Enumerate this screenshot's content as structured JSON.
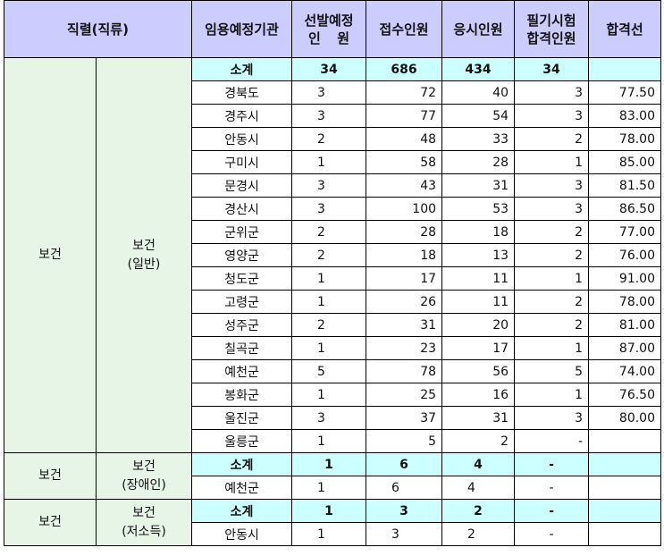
{
  "header": {
    "jikryeol": "직렬(직류)",
    "agency": "임용예정기관",
    "selected_line1": "선발예정",
    "selected_line2_a": "인",
    "selected_line2_b": "원",
    "applied": "접수인원",
    "examined": "응시인원",
    "written_pass_line1": "필기시험",
    "written_pass_line2": "합격인원",
    "cutoff": "합격선"
  },
  "groups": [
    {
      "series": "보건",
      "class_line1": "보건",
      "class_line2": "(일반)",
      "subtotal": {
        "agency": "소계",
        "selected": "34",
        "applied": "686",
        "examined": "434",
        "passed": "34",
        "cutoff": ""
      },
      "rows": [
        {
          "agency": "경북도",
          "selected": "3",
          "applied": "72",
          "examined": "40",
          "passed": "3",
          "cutoff": "77.50"
        },
        {
          "agency": "경주시",
          "selected": "3",
          "applied": "77",
          "examined": "54",
          "passed": "3",
          "cutoff": "83.00"
        },
        {
          "agency": "안동시",
          "selected": "2",
          "applied": "48",
          "examined": "33",
          "passed": "2",
          "cutoff": "78.00"
        },
        {
          "agency": "구미시",
          "selected": "1",
          "applied": "58",
          "examined": "28",
          "passed": "1",
          "cutoff": "85.00"
        },
        {
          "agency": "문경시",
          "selected": "3",
          "applied": "43",
          "examined": "31",
          "passed": "3",
          "cutoff": "81.50"
        },
        {
          "agency": "경산시",
          "selected": "3",
          "applied": "100",
          "examined": "53",
          "passed": "3",
          "cutoff": "86.50"
        },
        {
          "agency": "군위군",
          "selected": "2",
          "applied": "28",
          "examined": "18",
          "passed": "2",
          "cutoff": "77.00"
        },
        {
          "agency": "영양군",
          "selected": "2",
          "applied": "18",
          "examined": "13",
          "passed": "2",
          "cutoff": "76.00"
        },
        {
          "agency": "청도군",
          "selected": "1",
          "applied": "17",
          "examined": "11",
          "passed": "1",
          "cutoff": "91.00"
        },
        {
          "agency": "고령군",
          "selected": "1",
          "applied": "26",
          "examined": "11",
          "passed": "2",
          "cutoff": "78.00"
        },
        {
          "agency": "성주군",
          "selected": "2",
          "applied": "31",
          "examined": "20",
          "passed": "2",
          "cutoff": "81.00"
        },
        {
          "agency": "칠곡군",
          "selected": "1",
          "applied": "23",
          "examined": "17",
          "passed": "1",
          "cutoff": "87.00"
        },
        {
          "agency": "예천군",
          "selected": "5",
          "applied": "78",
          "examined": "56",
          "passed": "5",
          "cutoff": "74.00"
        },
        {
          "agency": "봉화군",
          "selected": "1",
          "applied": "25",
          "examined": "16",
          "passed": "1",
          "cutoff": "76.50"
        },
        {
          "agency": "울진군",
          "selected": "3",
          "applied": "37",
          "examined": "31",
          "passed": "3",
          "cutoff": "80.00"
        },
        {
          "agency": "울릉군",
          "selected": "1",
          "applied": "5",
          "examined": "2",
          "passed": "-",
          "cutoff": ""
        }
      ]
    },
    {
      "series": "보건",
      "class_line1": "보건",
      "class_line2": "(장애인)",
      "subtotal": {
        "agency": "소계",
        "selected": "1",
        "applied": "6",
        "examined": "4",
        "passed": "-",
        "cutoff": ""
      },
      "rows": [
        {
          "agency": "예천군",
          "selected": "1",
          "applied": "6",
          "examined": "4",
          "passed": "-",
          "cutoff": ""
        }
      ]
    },
    {
      "series": "보건",
      "class_line1": "보건",
      "class_line2": "(저소득)",
      "subtotal": {
        "agency": "소계",
        "selected": "1",
        "applied": "3",
        "examined": "2",
        "passed": "-",
        "cutoff": ""
      },
      "rows": [
        {
          "agency": "안동시",
          "selected": "1",
          "applied": "3",
          "examined": "2",
          "passed": "-",
          "cutoff": ""
        }
      ]
    }
  ]
}
